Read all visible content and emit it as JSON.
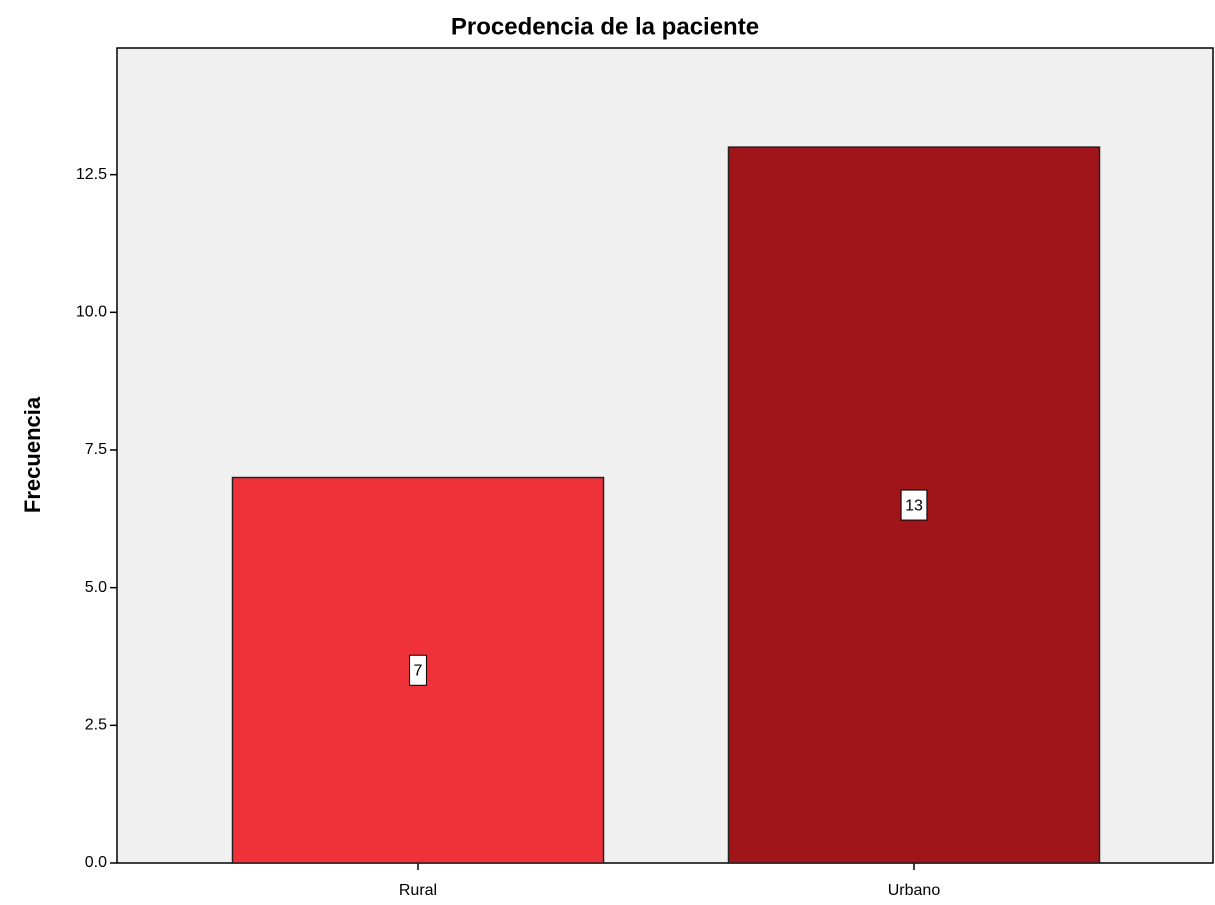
{
  "chart_data": {
    "type": "bar",
    "title": "Procedencia de la  paciente",
    "y_label": "Frecuencia",
    "categories": [
      "Rural",
      "Urbano"
    ],
    "values": [
      7,
      13
    ],
    "colors": [
      "#ef323a",
      "#a0151a"
    ],
    "ylim": [
      0,
      14.8
    ],
    "yticks": [
      {
        "value": 0,
        "label": "0.0"
      },
      2.5,
      {
        "value": 5,
        "label": "5.0"
      },
      7.5,
      {
        "value": 10,
        "label": "10.0"
      },
      12.5
    ]
  }
}
